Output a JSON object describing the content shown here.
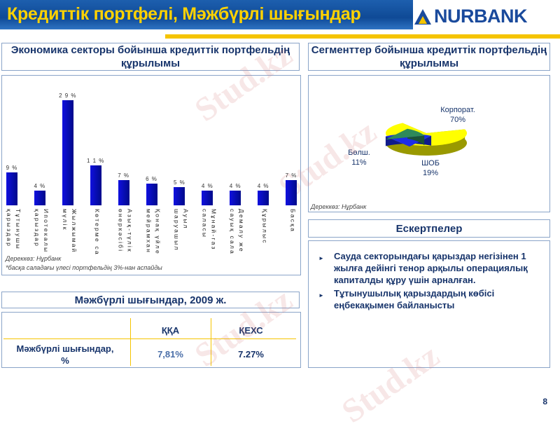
{
  "header": {
    "title": "Кредиттік портфелі, Мәжбүрлі шығындар",
    "logo": "NURBANK"
  },
  "sector_panel": {
    "title": "Экономика секторы бойынша кредиттік портфельдің құрылымы",
    "source": "Дереккөз: Нұрбанк",
    "footnote": "*басқа саладағы үлесі портфельдің 3%-нан аспайды"
  },
  "segment_panel": {
    "title": "Сегменттер бойынша кредиттік портфельдің құрылымы",
    "source": "Дереккөз: Нұрбанк"
  },
  "chart_data": [
    {
      "type": "bar",
      "categories": [
        [
          "Тұтынушы",
          "қарыздар"
        ],
        [
          "Ипотекалы",
          "қарыздар"
        ],
        [
          "Жылжымай",
          "мүлік"
        ],
        [
          "Көтерме са"
        ],
        [
          "Азық-түлік",
          "өнеркәсібі"
        ],
        [
          "Қонақ үйле",
          "мейрамхан"
        ],
        [
          "Ауыл",
          "шаруашыл"
        ],
        [
          "Мұнай-газ",
          "саласы"
        ],
        [
          "Демалу же",
          "сауық сала"
        ],
        [
          "Құрылыс"
        ],
        [
          "Басқа"
        ]
      ],
      "values": [
        9,
        4,
        29,
        11,
        7,
        6,
        5,
        4,
        4,
        4,
        7
      ],
      "labels": [
        "9 %",
        "4 %",
        "2 9 %",
        "1 1 %",
        "7 %",
        "6 %",
        "5 %",
        "4 %",
        "4 %",
        "4 %",
        "7 %"
      ],
      "ylim": [
        0,
        30
      ],
      "color": "#0a0ac8"
    },
    {
      "type": "pie",
      "slices": [
        {
          "name": "Корпорат.",
          "value": 70,
          "label": "70%",
          "color": "#ffff00"
        },
        {
          "name": "ШОБ",
          "value": 19,
          "label": "19%",
          "color": "#1c2de8"
        },
        {
          "name": "Бөлш.",
          "value": 11,
          "label": "11%",
          "color": "#2e8a5a"
        }
      ]
    }
  ],
  "notes": {
    "title": "Ескертпелер",
    "items": [
      "Сауда секторындағы қарыздар негізінен 1 жылға дейінгі тенор арқылы операциялық капиталды құру үшін арналған.",
      "Тұтынушылық қарыздардың көбісі еңбекақымен байланысты"
    ]
  },
  "losses": {
    "title": "Мәжбүрлі шығындар, 2009 ж.",
    "columns": [
      "ҚҚА",
      "ҚЕХС"
    ],
    "row_label": "Мәжбүрлі шығындар, %",
    "values": [
      "7,81%",
      "7.27%"
    ]
  },
  "page_number": "8",
  "watermark": "Stud.kz"
}
